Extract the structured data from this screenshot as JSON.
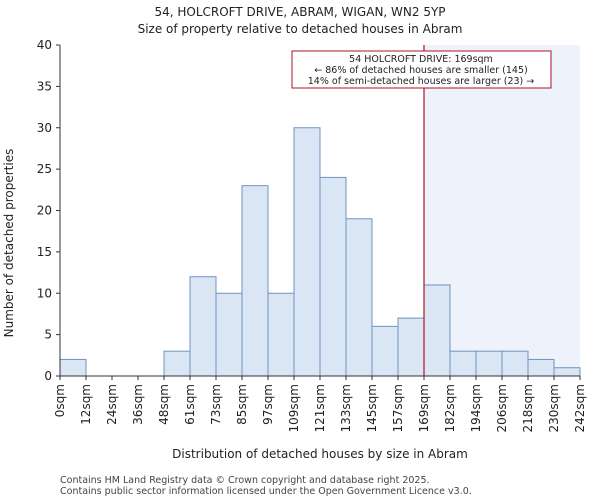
{
  "colors": {
    "bar_fill": "#dbe6f4",
    "bar_stroke": "#6f93c2",
    "highlight_fill": "#eef2fb",
    "marker": "#b0122b",
    "annotation_border": "#b0122b"
  },
  "chart_data": {
    "type": "bar",
    "title_line1": "54, HOLCROFT DRIVE, ABRAM, WIGAN, WN2 5YP",
    "title_line2": "Size of property relative to detached houses in Abram",
    "xlabel": "Distribution of detached houses by size in Abram",
    "ylabel": "Number of detached properties",
    "ylim": [
      0,
      40
    ],
    "yticks": [
      0,
      5,
      10,
      15,
      20,
      25,
      30,
      35,
      40
    ],
    "bin_edges": [
      0,
      12,
      24,
      36,
      48,
      61,
      73,
      85,
      97,
      109,
      121,
      133,
      145,
      157,
      169,
      182,
      194,
      206,
      218,
      230,
      242
    ],
    "tick_labels": [
      "0sqm",
      "12sqm",
      "24sqm",
      "36sqm",
      "48sqm",
      "61sqm",
      "73sqm",
      "85sqm",
      "97sqm",
      "109sqm",
      "121sqm",
      "133sqm",
      "145sqm",
      "157sqm",
      "169sqm",
      "182sqm",
      "194sqm",
      "206sqm",
      "218sqm",
      "230sqm",
      "242sqm"
    ],
    "values": [
      2,
      0,
      0,
      0,
      3,
      12,
      10,
      23,
      10,
      30,
      24,
      19,
      6,
      7,
      11,
      3,
      3,
      3,
      2,
      1
    ],
    "marker_value": 169,
    "marker_bin_index": 14,
    "annotation": {
      "line1": "54 HOLCROFT DRIVE: 169sqm",
      "line2": "← 86% of detached houses are smaller (145)",
      "line3": "14% of semi-detached houses are larger (23) →"
    }
  },
  "footer": {
    "line1": "Contains HM Land Registry data © Crown copyright and database right 2025.",
    "line2": "Contains public sector information licensed under the Open Government Licence v3.0."
  }
}
